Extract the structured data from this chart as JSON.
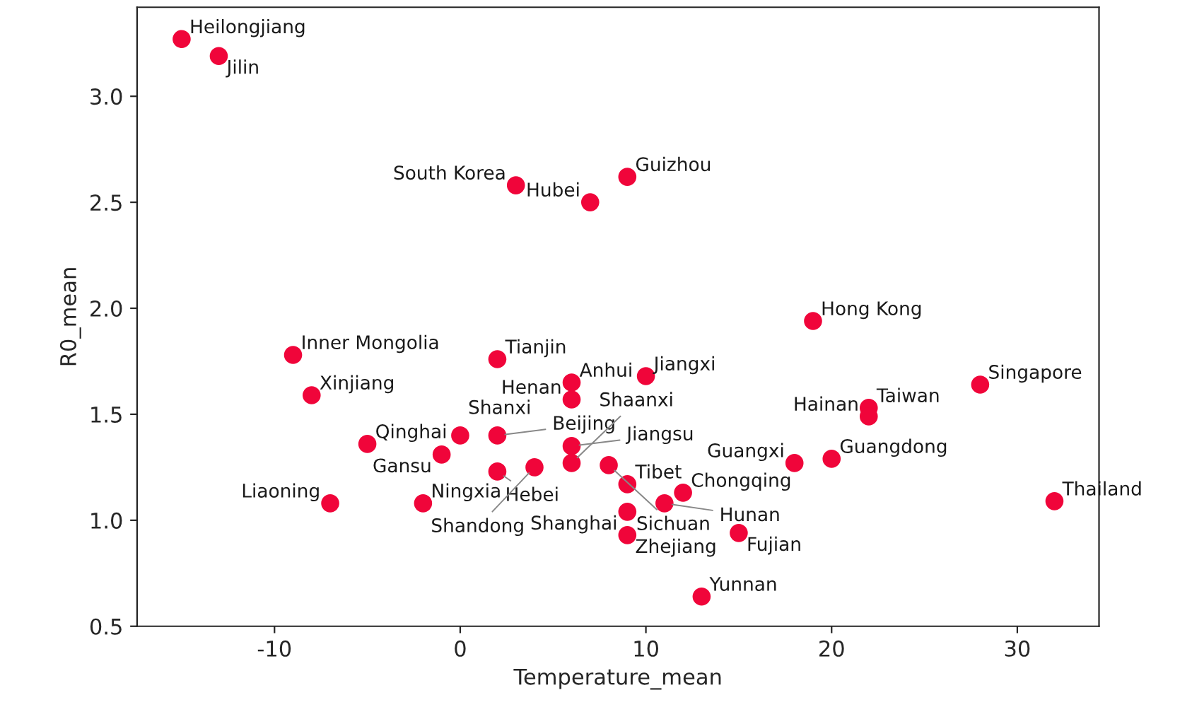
{
  "chart_data": {
    "type": "scatter",
    "xlabel": "Temperature_mean",
    "ylabel": "R0_mean",
    "x": [
      -15,
      -13,
      3,
      9,
      7,
      -9,
      2,
      -8,
      6,
      10,
      6,
      19,
      28,
      22,
      22,
      20,
      18,
      32,
      -5,
      0,
      2,
      -1,
      2,
      4,
      6,
      6,
      8,
      9,
      12,
      11,
      9,
      9,
      15,
      13,
      -7,
      -2
    ],
    "series": [
      {
        "color": "#f0053a",
        "values": [
          3.27,
          3.19,
          2.58,
          2.62,
          2.5,
          1.78,
          1.76,
          1.59,
          1.65,
          1.68,
          1.57,
          1.94,
          1.64,
          1.53,
          1.49,
          1.29,
          1.27,
          1.09,
          1.36,
          1.4,
          1.4,
          1.31,
          1.23,
          1.25,
          1.35,
          1.27,
          1.26,
          1.17,
          1.13,
          1.08,
          1.04,
          0.93,
          0.94,
          0.64,
          1.08,
          1.08
        ]
      }
    ],
    "annotations": [
      {
        "text": "Heilongjiang",
        "x": -15,
        "y": 3.27
      },
      {
        "text": "Jilin",
        "x": -13,
        "y": 3.19
      },
      {
        "text": "South Korea",
        "x": 3,
        "y": 2.58
      },
      {
        "text": "Guizhou",
        "x": 9,
        "y": 2.62
      },
      {
        "text": "Hubei",
        "x": 7,
        "y": 2.5
      },
      {
        "text": "Inner Mongolia",
        "x": -9,
        "y": 1.78
      },
      {
        "text": "Tianjin",
        "x": 2,
        "y": 1.76
      },
      {
        "text": "Xinjiang",
        "x": -8,
        "y": 1.59
      },
      {
        "text": "Anhui",
        "x": 6,
        "y": 1.65
      },
      {
        "text": "Jiangxi",
        "x": 10,
        "y": 1.68
      },
      {
        "text": "Henan",
        "x": 6,
        "y": 1.57
      },
      {
        "text": "Hong Kong",
        "x": 19,
        "y": 1.94
      },
      {
        "text": "Singapore",
        "x": 28,
        "y": 1.64
      },
      {
        "text": "Taiwan",
        "x": 22,
        "y": 1.53
      },
      {
        "text": "Hainan",
        "x": 22,
        "y": 1.49
      },
      {
        "text": "Guangdong",
        "x": 20,
        "y": 1.29
      },
      {
        "text": "Guangxi",
        "x": 18,
        "y": 1.27
      },
      {
        "text": "Thailand",
        "x": 32,
        "y": 1.09
      },
      {
        "text": "Qinghai",
        "x": -5,
        "y": 1.36
      },
      {
        "text": "Shanxi",
        "x": 0,
        "y": 1.4
      },
      {
        "text": "Beijing",
        "x": 2,
        "y": 1.4
      },
      {
        "text": "Gansu",
        "x": -1,
        "y": 1.31
      },
      {
        "text": "Hebei",
        "x": 2,
        "y": 1.23
      },
      {
        "text": "Shandong",
        "x": 4,
        "y": 1.25
      },
      {
        "text": "Jiangsu",
        "x": 6,
        "y": 1.35
      },
      {
        "text": "Shaanxi",
        "x": 6,
        "y": 1.27
      },
      {
        "text": "Sichuan",
        "x": 8,
        "y": 1.26
      },
      {
        "text": "Tibet",
        "x": 9,
        "y": 1.17
      },
      {
        "text": "Chongqing",
        "x": 12,
        "y": 1.13
      },
      {
        "text": "Hunan",
        "x": 11,
        "y": 1.08
      },
      {
        "text": "Shanghai",
        "x": 9,
        "y": 1.04
      },
      {
        "text": "Zhejiang",
        "x": 9,
        "y": 0.93
      },
      {
        "text": "Fujian",
        "x": 15,
        "y": 0.94
      },
      {
        "text": "Yunnan",
        "x": 13,
        "y": 0.64
      },
      {
        "text": "Liaoning",
        "x": -7,
        "y": 1.08
      },
      {
        "text": "Ningxia",
        "x": -2,
        "y": 1.08
      }
    ],
    "xlim": [
      -17.4,
      34.4
    ],
    "ylim": [
      0.5,
      3.42
    ],
    "xticks": [
      -10,
      0,
      10,
      20,
      30
    ],
    "yticks": [
      0.5,
      {
        "value": 1,
        "label": "1.0"
      },
      1.5,
      {
        "value": 2,
        "label": "2.0"
      },
      2.5,
      {
        "value": 3,
        "label": "3.0"
      }
    ],
    "grid": false,
    "legend": false,
    "marker": "circle"
  }
}
